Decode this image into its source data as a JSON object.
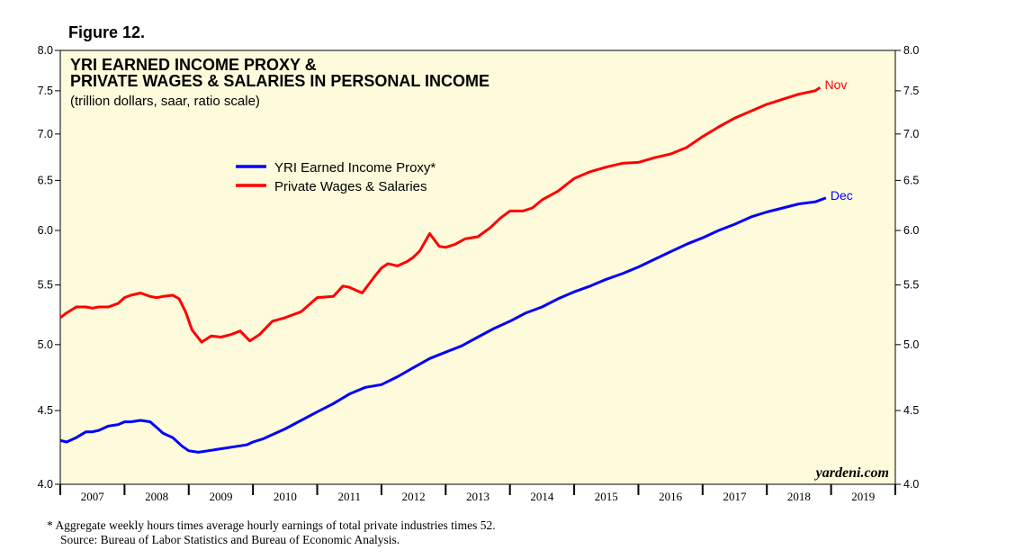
{
  "figure_label": "Figure 12.",
  "footnote": {
    "line1": "*  Aggregate weekly hours times average hourly earnings of total private industries times 52.",
    "line2": "Source: Bureau of Labor Statistics and Bureau of Economic Analysis."
  },
  "watermark": "yardeni.com",
  "chart_data": {
    "type": "line",
    "title_line1": "YRI EARNED INCOME PROXY &",
    "title_line2": "PRIVATE WAGES & SALARIES IN PERSONAL INCOME",
    "subtitle": "(trillion dollars, saar, ratio scale)",
    "y_scale": "log",
    "ylim": [
      4.0,
      8.0
    ],
    "y_ticks": [
      "4.0",
      "4.5",
      "5.0",
      "5.5",
      "6.0",
      "6.5",
      "7.0",
      "7.5",
      "8.0"
    ],
    "xlim": [
      2007.0,
      2020.0
    ],
    "x_labels": [
      "2007",
      "2008",
      "2009",
      "2010",
      "2011",
      "2012",
      "2013",
      "2014",
      "2015",
      "2016",
      "2017",
      "2018",
      "2019"
    ],
    "colors": {
      "background": "#fefbdc",
      "blue": "#0000ff",
      "red": "#ff0000"
    },
    "series": [
      {
        "name": "YRI Earned Income Proxy*",
        "color": "#0000ff",
        "end_label": "Dec",
        "x": [
          2007.0,
          2007.1,
          2007.25,
          2007.4,
          2007.5,
          2007.6,
          2007.75,
          2007.9,
          2008.0,
          2008.1,
          2008.25,
          2008.4,
          2008.5,
          2008.6,
          2008.75,
          2008.9,
          2009.0,
          2009.15,
          2009.3,
          2009.45,
          2009.6,
          2009.75,
          2009.9,
          2010.0,
          2010.15,
          2010.3,
          2010.5,
          2010.75,
          2011.0,
          2011.25,
          2011.5,
          2011.75,
          2012.0,
          2012.25,
          2012.5,
          2012.75,
          2013.0,
          2013.25,
          2013.5,
          2013.75,
          2014.0,
          2014.25,
          2014.5,
          2014.75,
          2015.0,
          2015.25,
          2015.5,
          2015.75,
          2016.0,
          2016.25,
          2016.5,
          2016.75,
          2017.0,
          2017.25,
          2017.5,
          2017.75,
          2018.0,
          2018.25,
          2018.5,
          2018.75,
          2018.92
        ],
        "values": [
          4.29,
          4.28,
          4.31,
          4.35,
          4.35,
          4.36,
          4.39,
          4.4,
          4.42,
          4.42,
          4.43,
          4.42,
          4.38,
          4.34,
          4.31,
          4.25,
          4.22,
          4.21,
          4.22,
          4.23,
          4.24,
          4.25,
          4.26,
          4.28,
          4.3,
          4.33,
          4.37,
          4.43,
          4.49,
          4.55,
          4.62,
          4.67,
          4.69,
          4.75,
          4.82,
          4.89,
          4.94,
          4.99,
          5.06,
          5.13,
          5.19,
          5.26,
          5.31,
          5.38,
          5.44,
          5.49,
          5.55,
          5.6,
          5.66,
          5.73,
          5.8,
          5.87,
          5.93,
          6.0,
          6.06,
          6.13,
          6.18,
          6.22,
          6.26,
          6.28,
          6.32
        ]
      },
      {
        "name": "Private Wages & Salaries",
        "color": "#ff0000",
        "end_label": "Nov",
        "x": [
          2007.0,
          2007.1,
          2007.25,
          2007.4,
          2007.5,
          2007.6,
          2007.75,
          2007.9,
          2008.0,
          2008.1,
          2008.25,
          2008.4,
          2008.5,
          2008.6,
          2008.75,
          2008.85,
          2008.95,
          2009.05,
          2009.2,
          2009.35,
          2009.5,
          2009.65,
          2009.8,
          2009.95,
          2010.1,
          2010.3,
          2010.5,
          2010.75,
          2011.0,
          2011.25,
          2011.4,
          2011.5,
          2011.7,
          2011.9,
          2012.0,
          2012.1,
          2012.25,
          2012.4,
          2012.5,
          2012.6,
          2012.75,
          2012.9,
          2013.0,
          2013.15,
          2013.3,
          2013.5,
          2013.7,
          2013.85,
          2014.0,
          2014.2,
          2014.35,
          2014.5,
          2014.75,
          2015.0,
          2015.25,
          2015.5,
          2015.75,
          2016.0,
          2016.25,
          2016.5,
          2016.75,
          2017.0,
          2017.25,
          2017.5,
          2017.75,
          2018.0,
          2018.25,
          2018.5,
          2018.75,
          2018.83
        ],
        "values": [
          5.22,
          5.26,
          5.31,
          5.31,
          5.3,
          5.31,
          5.31,
          5.34,
          5.39,
          5.41,
          5.43,
          5.4,
          5.39,
          5.4,
          5.41,
          5.38,
          5.27,
          5.12,
          5.02,
          5.07,
          5.06,
          5.08,
          5.11,
          5.03,
          5.08,
          5.19,
          5.22,
          5.27,
          5.39,
          5.4,
          5.49,
          5.48,
          5.43,
          5.58,
          5.65,
          5.69,
          5.67,
          5.71,
          5.75,
          5.81,
          5.97,
          5.85,
          5.84,
          5.87,
          5.92,
          5.94,
          6.03,
          6.12,
          6.19,
          6.19,
          6.22,
          6.3,
          6.39,
          6.52,
          6.59,
          6.64,
          6.68,
          6.69,
          6.74,
          6.78,
          6.85,
          6.97,
          7.08,
          7.18,
          7.26,
          7.34,
          7.4,
          7.46,
          7.5,
          7.54
        ]
      }
    ]
  }
}
